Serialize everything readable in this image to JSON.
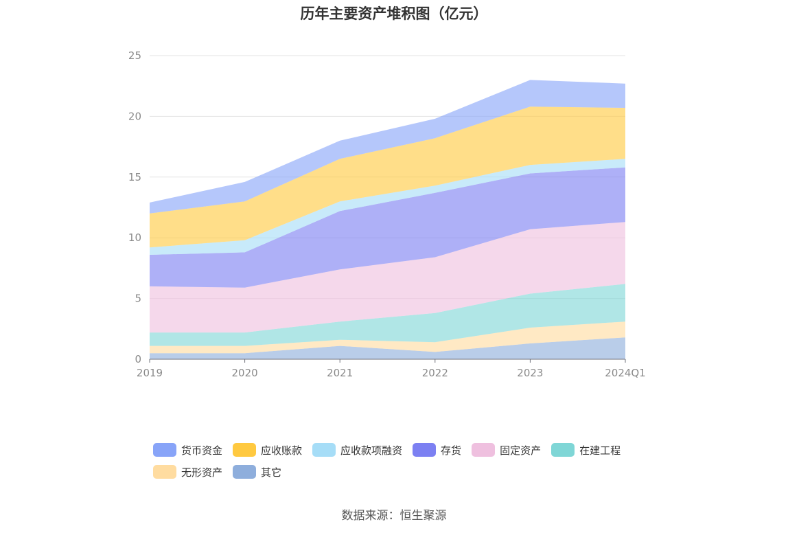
{
  "source_note": "数据来源：恒生聚源",
  "chart_data": {
    "type": "area",
    "stacked": true,
    "title": "历年主要资产堆积图（亿元）",
    "x": [
      "2019",
      "2020",
      "2021",
      "2022",
      "2023",
      "2024Q1"
    ],
    "ylim": [
      0,
      25
    ],
    "yticks": [
      "0",
      "5",
      "10",
      "15",
      "20",
      "25"
    ],
    "grid": true,
    "legend_position": "bottom",
    "series": [
      {
        "name": "其它",
        "color": "#8eaedc",
        "values": [
          0.5,
          0.5,
          1.1,
          0.6,
          1.3,
          1.8
        ]
      },
      {
        "name": "无形资产",
        "color": "#ffdca0",
        "values": [
          0.6,
          0.6,
          0.5,
          0.8,
          1.3,
          1.3
        ]
      },
      {
        "name": "在建工程",
        "color": "#7fd6d6",
        "values": [
          1.1,
          1.1,
          1.5,
          2.4,
          2.8,
          3.1
        ]
      },
      {
        "name": "固定资产",
        "color": "#efc0df",
        "values": [
          3.8,
          3.7,
          4.3,
          4.6,
          5.3,
          5.1
        ]
      },
      {
        "name": "存货",
        "color": "#7c80f2",
        "values": [
          2.6,
          2.9,
          4.8,
          5.3,
          4.6,
          4.5
        ]
      },
      {
        "name": "应收款项融资",
        "color": "#a6ddf7",
        "values": [
          0.6,
          1.0,
          0.8,
          0.6,
          0.7,
          0.7
        ]
      },
      {
        "name": "应收账款",
        "color": "#ffc940",
        "values": [
          2.8,
          3.2,
          3.5,
          3.9,
          4.8,
          4.2
        ]
      },
      {
        "name": "货币资金",
        "color": "#88a4f8",
        "values": [
          0.9,
          1.6,
          1.5,
          1.6,
          2.2,
          2.0
        ]
      }
    ],
    "legend_order": [
      "货币资金",
      "应收账款",
      "应收款项融资",
      "存货",
      "固定资产",
      "在建工程",
      "无形资产",
      "其它"
    ]
  }
}
